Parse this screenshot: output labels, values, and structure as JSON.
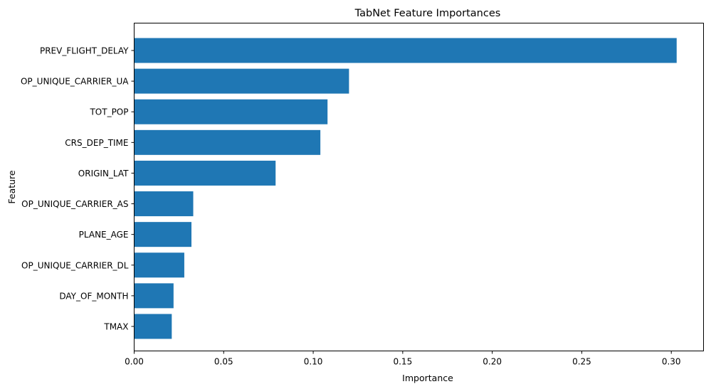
{
  "chart_data": {
    "type": "bar",
    "orientation": "horizontal",
    "title": "TabNet Feature Importances",
    "xlabel": "Importance",
    "ylabel": "Feature",
    "categories": [
      "PREV_FLIGHT_DELAY",
      "OP_UNIQUE_CARRIER_UA",
      "TOT_POP",
      "CRS_DEP_TIME",
      "ORIGIN_LAT",
      "OP_UNIQUE_CARRIER_AS",
      "PLANE_AGE",
      "OP_UNIQUE_CARRIER_DL",
      "DAY_OF_MONTH",
      "TMAX"
    ],
    "values": [
      0.303,
      0.12,
      0.108,
      0.104,
      0.079,
      0.033,
      0.032,
      0.028,
      0.022,
      0.021
    ],
    "xlim": [
      0,
      0.318
    ],
    "xticks": [
      "0.00",
      "0.05",
      "0.10",
      "0.15",
      "0.20",
      "0.25",
      "0.30"
    ],
    "bar_color": "#1f77b4",
    "grid": false,
    "legend": "none"
  }
}
